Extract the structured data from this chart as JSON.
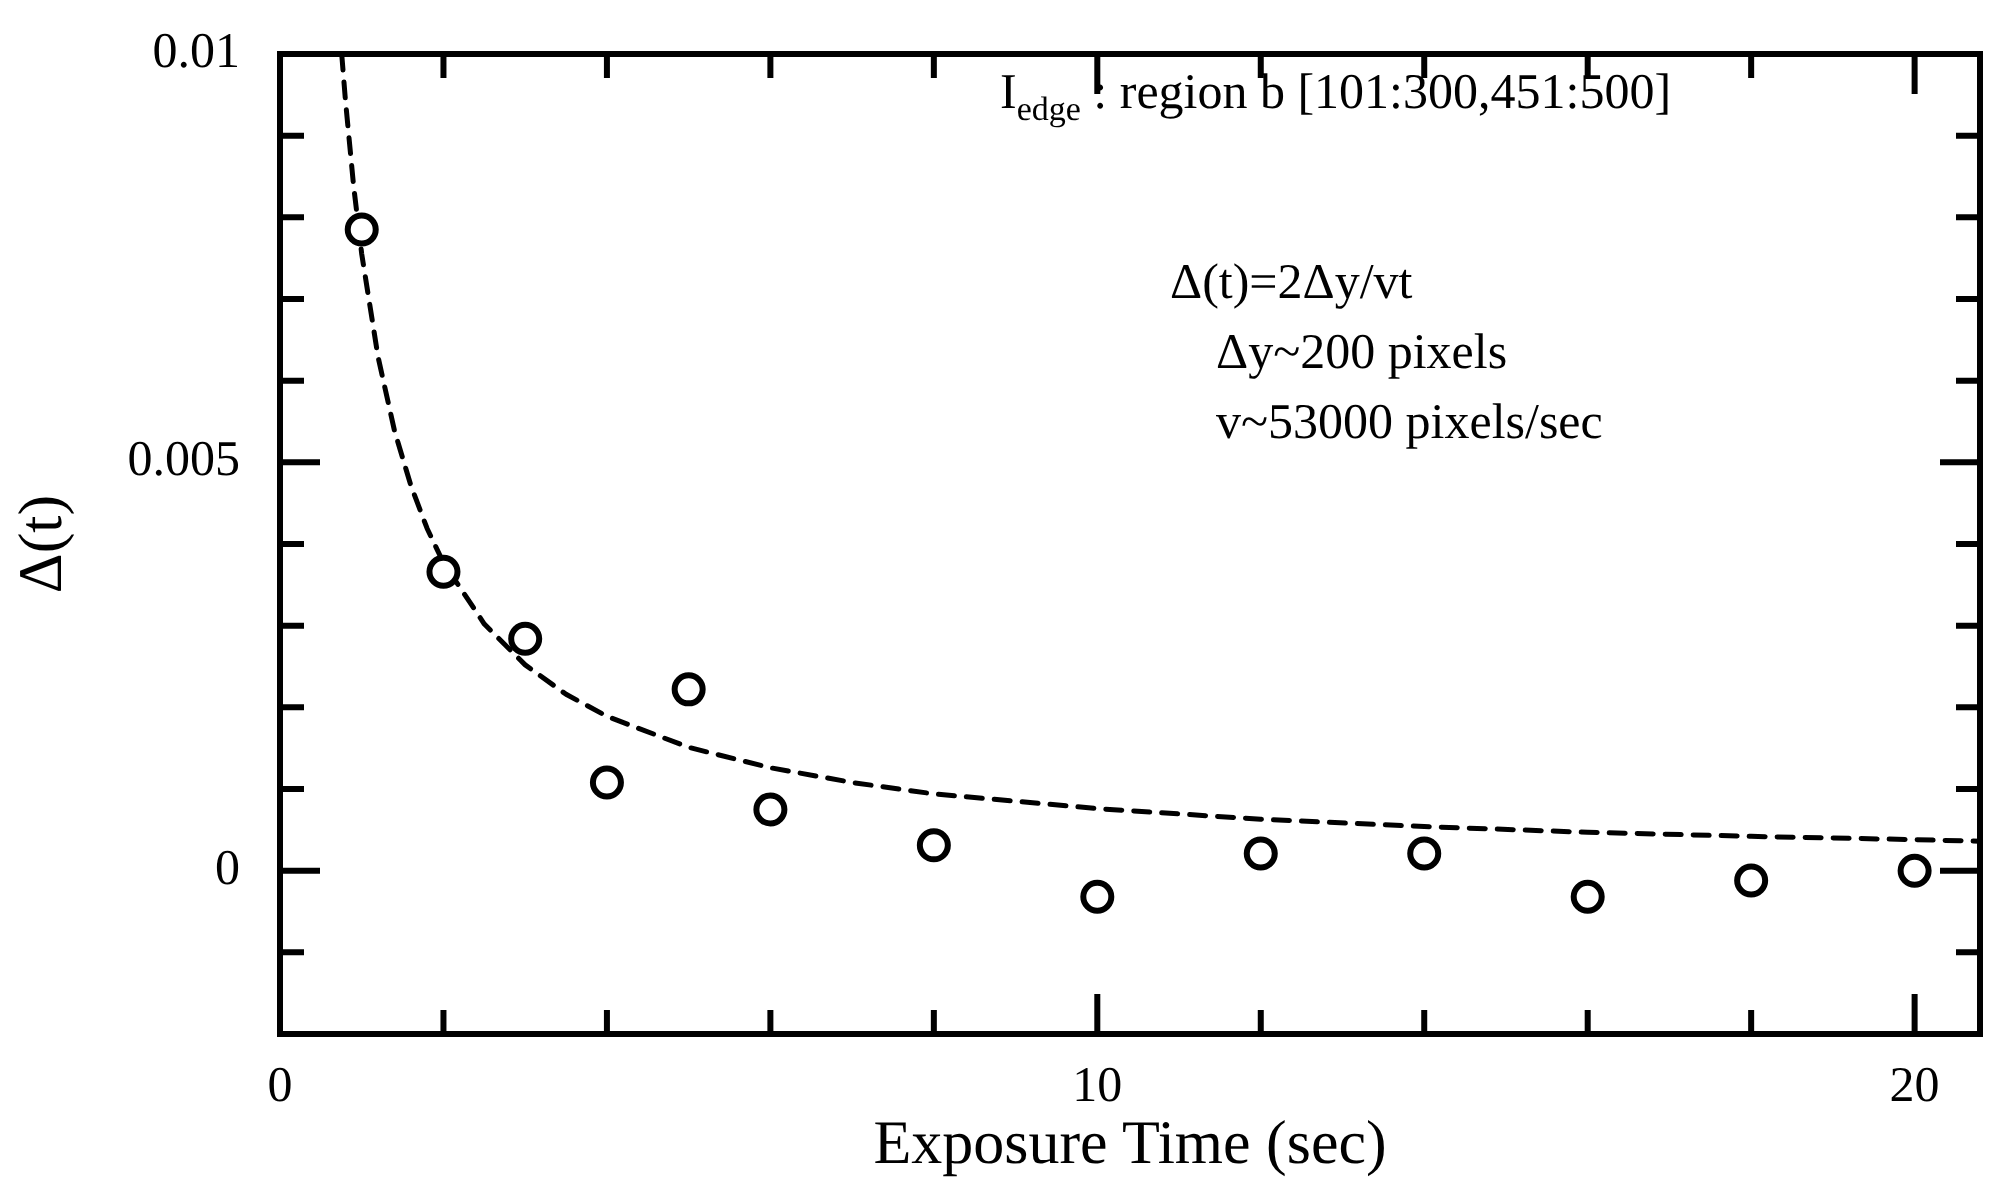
{
  "chart_data": {
    "type": "scatter",
    "xlabel": "Exposure Time (sec)",
    "ylabel": "Δ(t)",
    "xlim": [
      0,
      20.8
    ],
    "ylim": [
      -0.002,
      0.01
    ],
    "xticks": [
      0,
      {
        "value": 2,
        "label": null
      },
      {
        "value": 4,
        "label": null
      },
      {
        "value": 6,
        "label": null
      },
      {
        "value": 8,
        "label": null
      },
      10,
      {
        "value": 12,
        "label": null
      },
      {
        "value": 14,
        "label": null
      },
      {
        "value": 16,
        "label": null
      },
      {
        "value": 18,
        "label": null
      },
      20
    ],
    "yticks": [
      {
        "value": -0.001,
        "label": null
      },
      0,
      {
        "value": 0.001,
        "label": null
      },
      {
        "value": 0.002,
        "label": null
      },
      {
        "value": 0.003,
        "label": null
      },
      {
        "value": 0.004,
        "label": null
      },
      0.005,
      {
        "value": 0.006,
        "label": null
      },
      {
        "value": 0.007,
        "label": null
      },
      {
        "value": 0.008,
        "label": null
      },
      {
        "value": 0.009,
        "label": null
      },
      0.01
    ],
    "grid": false,
    "legend": false,
    "marker": "circle",
    "annotations": [
      "I$_{edge}$ : region b [101:300,451:500]",
      "Δ(t)=2Δy/vt",
      "Δy~200 pixels",
      "v~53000 pixels/sec"
    ],
    "series": [
      {
        "type": "scatter",
        "color": "#000000",
        "x": [
          1,
          2,
          3,
          4,
          5,
          6,
          8,
          10,
          12,
          14,
          16,
          18,
          20
        ],
        "values": [
          0.00785,
          0.00366,
          0.00284,
          0.00108,
          0.00222,
          0.00075,
          0.00031,
          -0.00032,
          0.00021,
          0.00021,
          -0.00032,
          -0.00012,
          0
        ]
      },
      {
        "type": "line",
        "color": "#000000",
        "line_style": "dashed",
        "marker": "none",
        "x": [
          0.755,
          0.8,
          0.9,
          1,
          1.2,
          1.4,
          1.6,
          1.8,
          2,
          2.5,
          3,
          3.5,
          4,
          5,
          6,
          7,
          8,
          10,
          12,
          14,
          16,
          18,
          20,
          20.8
        ],
        "values": [
          0.01,
          0.00944,
          0.00839,
          0.00755,
          0.00629,
          0.00539,
          0.00472,
          0.00419,
          0.00377,
          0.00302,
          0.00252,
          0.00216,
          0.00189,
          0.00151,
          0.00126,
          0.00108,
          0.00094,
          0.00076,
          0.00063,
          0.00054,
          0.00047,
          0.00042,
          0.00038,
          0.00036
        ]
      }
    ]
  }
}
